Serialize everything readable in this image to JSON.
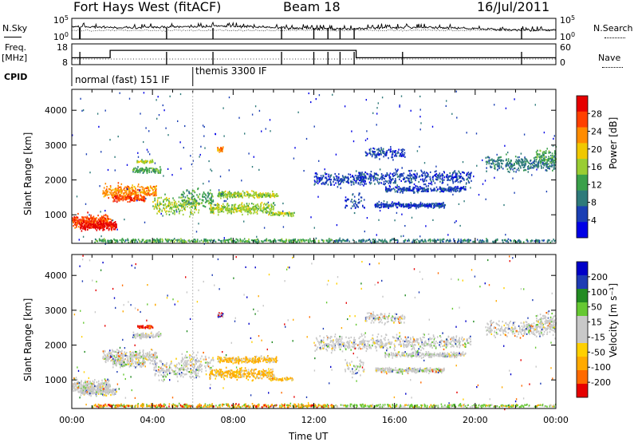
{
  "header": {
    "station": "Fort Hays West (fitACF)",
    "beam": "Beam 18",
    "date": "16/Jul/2011"
  },
  "labels": {
    "nsky": "N.Sky",
    "nsearch": "N.Search",
    "freq": "Freq.",
    "mhz": "[MHz]",
    "nave": "Nave",
    "cpid": "CPID",
    "mode1": "normal (fast) 151 IF",
    "mode2": "themis 3300 IF"
  },
  "colors": {
    "power_scale": [
      "#0000e6",
      "#1a3fb4",
      "#2e7a7a",
      "#3aa04a",
      "#9acd32",
      "#f0c800",
      "#ff8c00",
      "#ff4000",
      "#e60000"
    ],
    "velocity_scale": [
      "#e60000",
      "#ff6a00",
      "#ffaa00",
      "#ffd000",
      "#c8c8c8",
      "#c8c8c8",
      "#66c832",
      "#228b22",
      "#1e3cb4",
      "#0000c8"
    ]
  },
  "chart_data": [
    {
      "type": "line",
      "name": "noise-panel",
      "left_ticks": [
        "10^5",
        "10^0"
      ],
      "right_ticks": [
        "10^5",
        "10^0"
      ],
      "xlim": [
        0,
        24
      ]
    },
    {
      "type": "line",
      "name": "freq-panel",
      "left_ticks": [
        "18",
        "8"
      ],
      "right_ticks": [
        "60",
        "0"
      ],
      "freq_segments": [
        [
          0,
          1.9,
          11.3
        ],
        [
          1.9,
          14.1,
          14.9
        ],
        [
          14.1,
          24,
          11.3
        ]
      ],
      "xlim": [
        0,
        24
      ]
    },
    {
      "type": "heatmap",
      "name": "power-panel",
      "ylabel": "Slant Range [km]",
      "yticks": [
        "4000",
        "3000",
        "2000",
        "1000"
      ],
      "ylim": [
        180,
        4600
      ],
      "colorbar_label": "Power [dB]",
      "colorbar_ticks": [
        "28",
        "24",
        "20",
        "16",
        "12",
        "8",
        "4"
      ],
      "xlim": [
        0,
        24
      ]
    },
    {
      "type": "heatmap",
      "name": "velocity-panel",
      "ylabel": "Slant Range [km]",
      "yticks": [
        "4000",
        "3000",
        "2000",
        "1000"
      ],
      "ylim": [
        180,
        4600
      ],
      "colorbar_label": "Velocity [m s⁻¹]",
      "colorbar_ticks": [
        "200",
        "100",
        "50",
        "15",
        "-15",
        "-50",
        "-100",
        "-200"
      ],
      "xlabel": "Time UT",
      "xticks": [
        "00:00",
        "04:00",
        "08:00",
        "12:00",
        "16:00",
        "20:00",
        "00:00"
      ],
      "xlim": [
        0,
        24
      ]
    }
  ]
}
